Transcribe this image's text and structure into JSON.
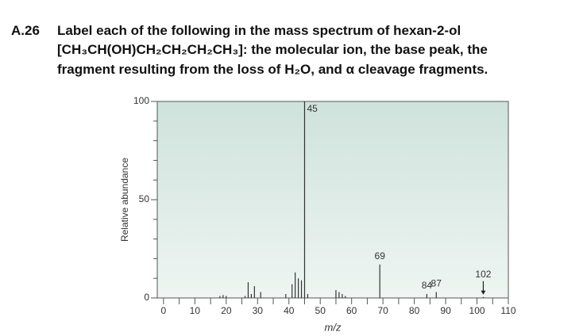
{
  "problem": {
    "number": "A.26",
    "lines": [
      "Label each of the following in the mass spectrum of hexan-2-ol",
      "[CH₃CH(OH)CH₂CH₂CH₂CH₃]: the molecular ion, the base peak, the",
      "fragment resulting from the loss of H₂O, and α cleavage fragments."
    ]
  },
  "chart_data": {
    "type": "bar",
    "x_label": "m/z",
    "y_label": "Relative abundance",
    "x": [
      18,
      19,
      20,
      26,
      27,
      28,
      29,
      31,
      39,
      41,
      42,
      43,
      44,
      45,
      46,
      55,
      56,
      57,
      58,
      69,
      84,
      87,
      102
    ],
    "values": [
      1,
      1.5,
      1,
      1,
      8,
      2,
      6,
      3,
      2,
      7,
      13,
      10,
      9,
      100,
      2,
      4,
      3,
      2,
      1,
      17,
      2,
      3,
      0.5
    ],
    "label_style": [
      null,
      null,
      null,
      null,
      null,
      null,
      null,
      null,
      null,
      null,
      null,
      null,
      null,
      "side",
      null,
      null,
      null,
      null,
      null,
      "above",
      "above",
      "above",
      "arrow"
    ],
    "color": "#333333",
    "xlim": [
      -2,
      110
    ],
    "ylim": [
      0,
      100
    ],
    "xticks": [
      0,
      10,
      20,
      30,
      40,
      50,
      60,
      70,
      80,
      90,
      100,
      110
    ],
    "xminorticks": [
      5,
      15,
      25,
      35,
      45,
      55,
      65,
      75,
      85,
      95,
      105
    ],
    "yticks": [
      0,
      50,
      100
    ],
    "yminorticks": [
      10,
      20,
      30,
      40,
      60,
      70,
      80,
      90
    ]
  }
}
